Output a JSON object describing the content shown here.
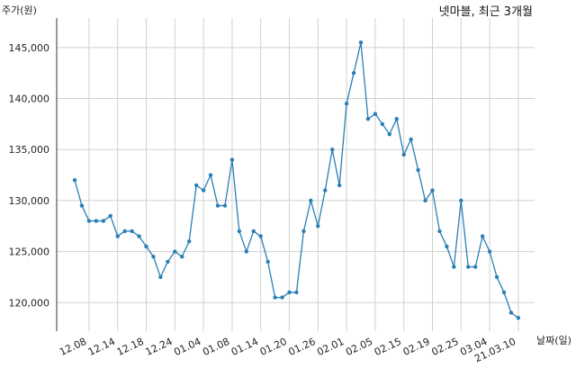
{
  "chart_data": {
    "type": "line",
    "title": "넷마블, 최근 3개월",
    "ylabel": "주가(원)",
    "xlabel": "날짜(일)",
    "ylim": [
      117200,
      147900
    ],
    "grid": true,
    "yticks": [
      120000,
      125000,
      130000,
      135000,
      140000,
      145000
    ],
    "ytick_labels": [
      "120,000",
      "125,000",
      "130,000",
      "135,000",
      "140,000",
      "145,000"
    ],
    "xtick_labels": [
      "12.08",
      "12.14",
      "12.18",
      "12.24",
      "01.04",
      "01.08",
      "01.14",
      "01.20",
      "01.26",
      "02.01",
      "02.05",
      "02.15",
      "02.19",
      "02.25",
      "03.04",
      "21.03.10"
    ],
    "xtick_indices": [
      2,
      6,
      10,
      14,
      18,
      22,
      26,
      30,
      34,
      38,
      42,
      46,
      50,
      54,
      58,
      62
    ],
    "series": [
      {
        "color": "#2a7fb5",
        "values": [
          132000,
          129500,
          128000,
          128000,
          128000,
          128500,
          126500,
          127000,
          127000,
          126500,
          125500,
          124500,
          122500,
          124000,
          125000,
          124500,
          126000,
          131500,
          131000,
          132500,
          129500,
          129500,
          134000,
          127000,
          125000,
          127000,
          126500,
          124000,
          120500,
          120500,
          121000,
          121000,
          127000,
          130000,
          127500,
          131000,
          135000,
          131500,
          139500,
          142500,
          145500,
          138000,
          138500,
          137500,
          136500,
          138000,
          134500,
          136000,
          133000,
          130000,
          131000,
          127000,
          125500,
          123500,
          130000,
          123500,
          123500,
          126500,
          125000,
          122500,
          121000,
          119000,
          118500
        ]
      }
    ]
  }
}
